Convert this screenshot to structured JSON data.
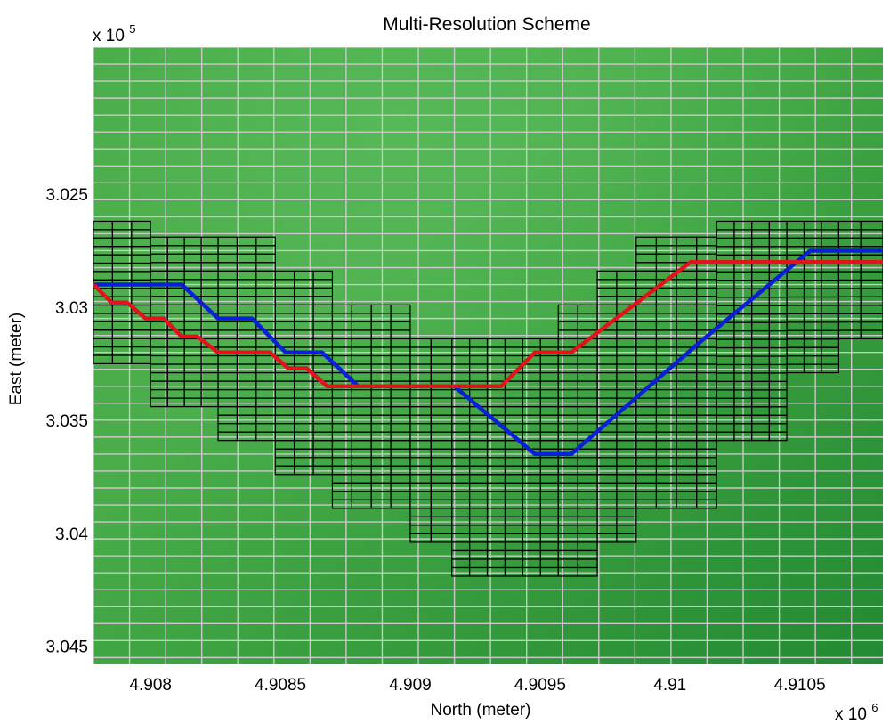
{
  "chart_data": {
    "type": "line",
    "title": "Multi-Resolution Scheme",
    "xlabel": "North (meter)",
    "ylabel": "East (meter)",
    "x_multiplier": "x 10",
    "x_multiplier_exp": "6",
    "y_multiplier": "x 10",
    "y_multiplier_exp": "5",
    "xlim": [
      4.90778,
      4.91082
    ],
    "ylim": [
      3.0458,
      3.0185
    ],
    "y_inverted": true,
    "x_ticks": [
      {
        "value": 4.908,
        "label": "4.908"
      },
      {
        "value": 4.9085,
        "label": "4.9085"
      },
      {
        "value": 4.909,
        "label": "4.909"
      },
      {
        "value": 4.9095,
        "label": "4.9095"
      },
      {
        "value": 4.91,
        "label": "4.91"
      },
      {
        "value": 4.9105,
        "label": "4.9105"
      }
    ],
    "y_ticks": [
      {
        "value": 3.025,
        "label": "3.025"
      },
      {
        "value": 3.03,
        "label": "3.03"
      },
      {
        "value": 3.035,
        "label": "3.035"
      },
      {
        "value": 3.04,
        "label": "3.04"
      },
      {
        "value": 3.045,
        "label": "3.045"
      }
    ],
    "coarse_grid": {
      "x0": 4.90778,
      "y0": 3.0185,
      "dx": 0.000139,
      "dy": 0.00075,
      "color": "#c9c9c9"
    },
    "fine_grid": {
      "color": "#000000",
      "cell_dx": 6.95e-05,
      "cell_dy": 0.000375,
      "columns": [
        {
          "x0": 4.90778,
          "x1": 4.908,
          "top": 3.0262,
          "bottom": 3.0325
        },
        {
          "x0": 4.908,
          "x1": 4.90826,
          "top": 3.0269,
          "bottom": 3.0344
        },
        {
          "x0": 4.90826,
          "x1": 4.90848,
          "top": 3.0269,
          "bottom": 3.0359
        },
        {
          "x0": 4.90848,
          "x1": 4.9087,
          "top": 3.0284,
          "bottom": 3.0374
        },
        {
          "x0": 4.9087,
          "x1": 4.909,
          "top": 3.0299,
          "bottom": 3.0389
        },
        {
          "x0": 4.909,
          "x1": 4.90916,
          "top": 3.0314,
          "bottom": 3.0404
        },
        {
          "x0": 4.90916,
          "x1": 4.90957,
          "top": 3.0314,
          "bottom": 3.0419
        },
        {
          "x0": 4.90957,
          "x1": 4.90972,
          "top": 3.0299,
          "bottom": 3.0419
        },
        {
          "x0": 4.90972,
          "x1": 4.90987,
          "top": 3.0284,
          "bottom": 3.0404
        },
        {
          "x0": 4.90987,
          "x1": 4.91018,
          "top": 3.0269,
          "bottom": 3.0389
        },
        {
          "x0": 4.91018,
          "x1": 4.91045,
          "top": 3.0262,
          "bottom": 3.0359
        },
        {
          "x0": 4.91045,
          "x1": 4.91065,
          "top": 3.0262,
          "bottom": 3.0329
        },
        {
          "x0": 4.91065,
          "x1": 4.91082,
          "top": 3.0262,
          "bottom": 3.0314
        }
      ]
    },
    "series": [
      {
        "name": "blue-path",
        "color": "#0a1fd6",
        "x": [
          4.90778,
          4.90812,
          4.90826,
          4.90839,
          4.90852,
          4.90866,
          4.9088,
          4.90917,
          4.90948,
          4.90962,
          4.91012,
          4.91054,
          4.91082
        ],
        "y": [
          3.029,
          3.029,
          3.0305,
          3.0305,
          3.032,
          3.032,
          3.0335,
          3.0335,
          3.0365,
          3.0365,
          3.0315,
          3.0275,
          3.0275
        ]
      },
      {
        "name": "red-path",
        "color": "#e0141a",
        "x": [
          4.90778,
          4.90785,
          4.90791,
          4.90798,
          4.90805,
          4.90812,
          4.90818,
          4.90826,
          4.90832,
          4.9084,
          4.90846,
          4.90853,
          4.9086,
          4.90868,
          4.90875,
          4.90881,
          4.90935,
          4.90948,
          4.90962,
          4.91008,
          4.91082
        ],
        "y": [
          3.029,
          3.0298,
          3.0298,
          3.0305,
          3.0305,
          3.0313,
          3.0313,
          3.032,
          3.032,
          3.032,
          3.032,
          3.0327,
          3.0327,
          3.0335,
          3.0335,
          3.0335,
          3.0335,
          3.032,
          3.032,
          3.028,
          3.028
        ]
      }
    ]
  }
}
